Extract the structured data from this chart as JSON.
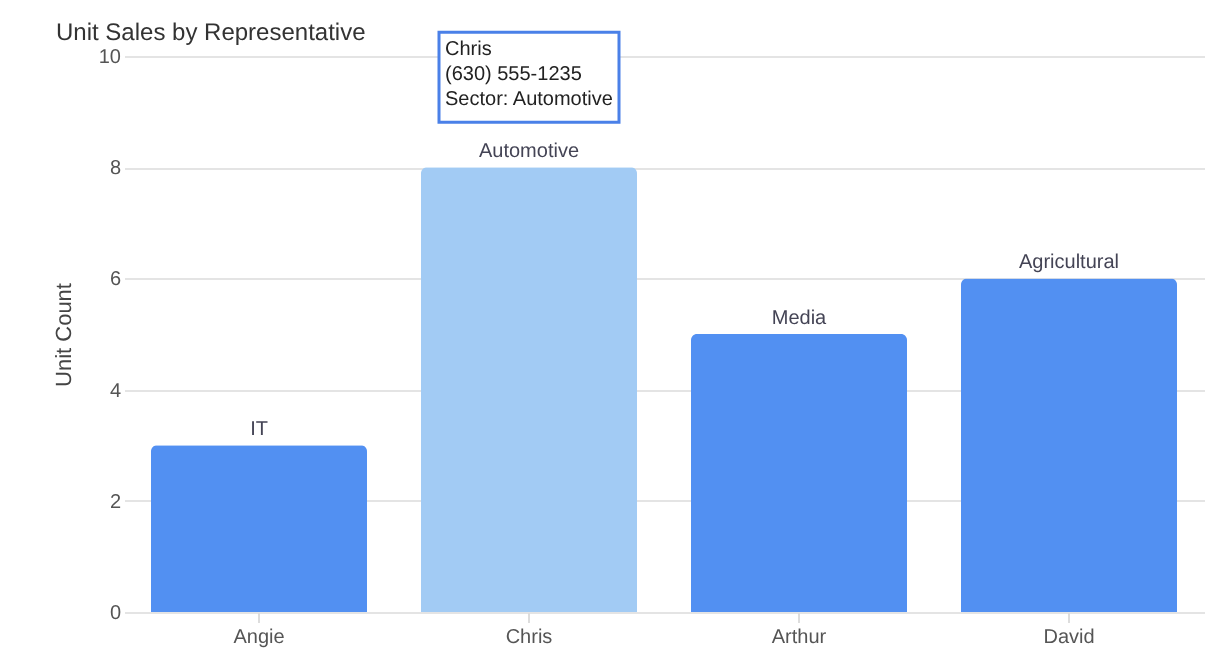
{
  "chart_data": {
    "type": "bar",
    "title": "Unit Sales by Representative",
    "ylabel": "Unit Count",
    "categories": [
      "Angie",
      "Chris",
      "Arthur",
      "David"
    ],
    "values": [
      3,
      8,
      5,
      6
    ],
    "colors": [
      "#5290f2",
      "#a2cbf4",
      "#5290f2",
      "#5290f2"
    ],
    "value_labels": [
      "IT",
      "Automotive",
      "Media",
      "Agricultural"
    ],
    "annotations": [
      {
        "text": "Chris\n(630) 555-1235\nSector: Automotive",
        "x": "Chris",
        "y": 8
      }
    ],
    "ylim": [
      0,
      10
    ],
    "yticks": [
      0,
      2,
      4,
      6,
      8,
      10
    ],
    "grid": "y"
  }
}
